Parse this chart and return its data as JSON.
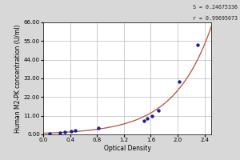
{
  "xlabel": "Optical Density",
  "ylabel": "Human M2-PK concentration (U/ml)",
  "annotation_line1": "S = 0.24675336",
  "annotation_line2": "r = 0.99695073",
  "x_data": [
    0.1,
    0.25,
    0.32,
    0.42,
    0.48,
    0.82,
    1.5,
    1.55,
    1.62,
    1.72,
    2.02,
    2.3
  ],
  "y_data": [
    0.5,
    1.0,
    1.5,
    2.0,
    2.5,
    4.0,
    8.0,
    9.5,
    11.0,
    14.0,
    31.0,
    53.0
  ],
  "xlim": [
    0.0,
    2.5
  ],
  "ylim": [
    0.0,
    66.0
  ],
  "xticks": [
    0.0,
    0.4,
    0.8,
    1.2,
    1.6,
    2.0,
    2.4
  ],
  "yticks": [
    0.0,
    11.0,
    22.0,
    33.0,
    44.0,
    55.0,
    66.0
  ],
  "ytick_labels": [
    "0.00",
    "11.00",
    "22.00",
    "33.00",
    "44.00",
    "55.00",
    "66.00"
  ],
  "xtick_labels": [
    "0.0",
    "0.4",
    "0.8",
    "1.2",
    "1.6",
    "2.0",
    "2.4"
  ],
  "marker_color": "#1e1e8c",
  "line_color": "#b05040",
  "bg_color": "#d8d8d8",
  "plot_bg_color": "#ffffff",
  "grid_color": "#aaaaaa",
  "label_fontsize": 5.5,
  "tick_fontsize": 5.0,
  "annot_fontsize": 4.8
}
